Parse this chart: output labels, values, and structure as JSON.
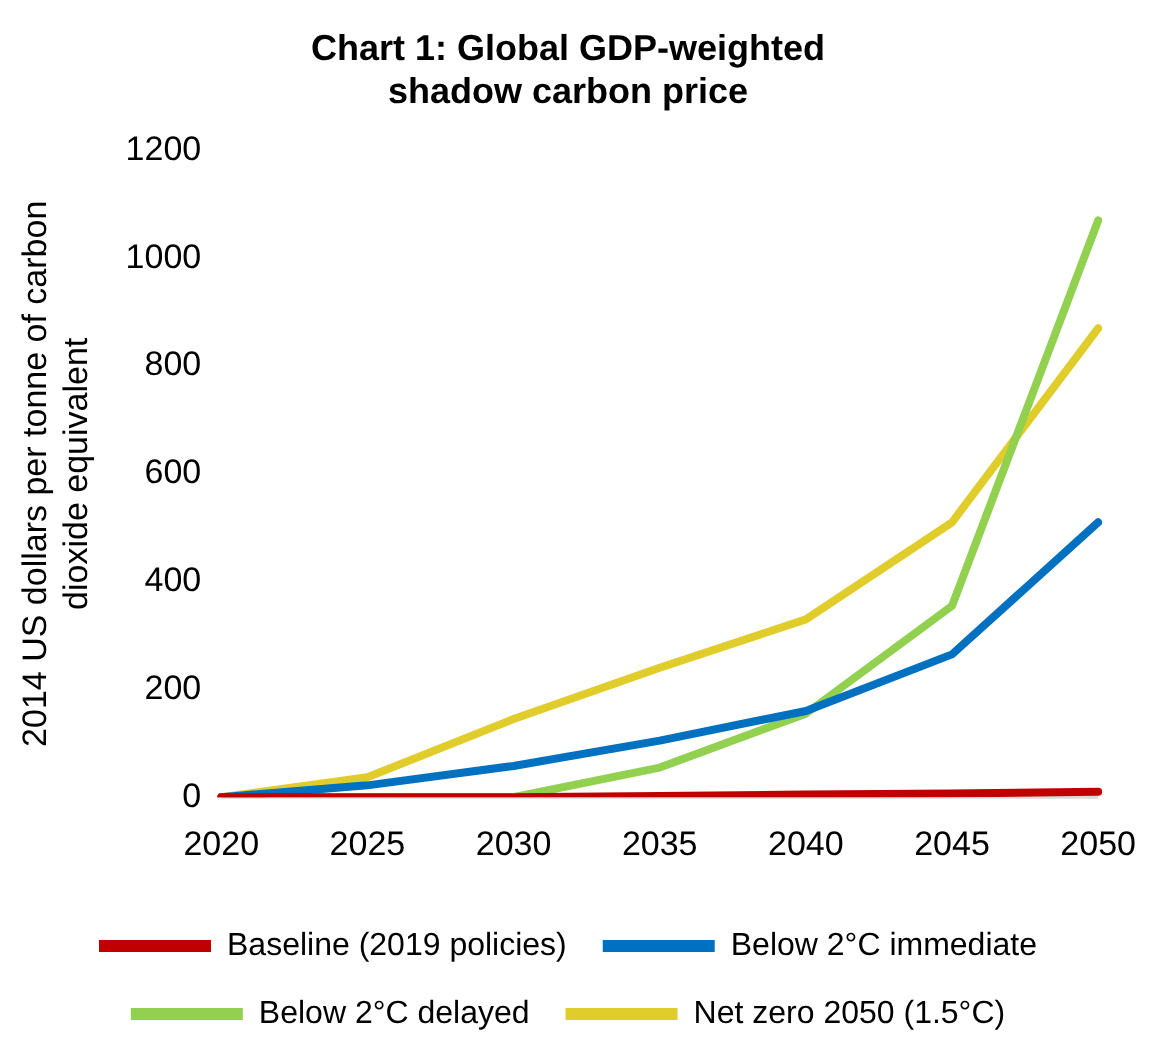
{
  "chart_data": {
    "type": "line",
    "title": "Chart 1: Global GDP-weighted shadow carbon price",
    "ylabel": "2014 US dollars per tonne of carbon dioxide equivalent",
    "categories": [
      "2020",
      "2025",
      "2030",
      "2035",
      "2040",
      "2045",
      "2050"
    ],
    "series": [
      {
        "name": "Baseline (2019 policies)",
        "color": "#c00000",
        "values": [
          0,
          0,
          0,
          2,
          5,
          7,
          10
        ]
      },
      {
        "name": "Below 2°C immediate",
        "color": "#0070c0",
        "values": [
          0,
          22,
          58,
          105,
          160,
          265,
          510
        ]
      },
      {
        "name": "Below 2°C delayed",
        "color": "#92d050",
        "values": [
          0,
          0,
          0,
          55,
          155,
          355,
          1070
        ]
      },
      {
        "name": "Net zero 2050 (1.5°C)",
        "color": "#e0cd2b",
        "values": [
          0,
          37,
          145,
          240,
          330,
          510,
          870
        ]
      }
    ],
    "ylim": [
      0,
      1200
    ],
    "yticks": [
      0,
      200,
      400,
      600,
      800,
      1000,
      1200
    ],
    "grid": false,
    "legend": "bottom",
    "marker": "none",
    "line_style": "solid"
  }
}
